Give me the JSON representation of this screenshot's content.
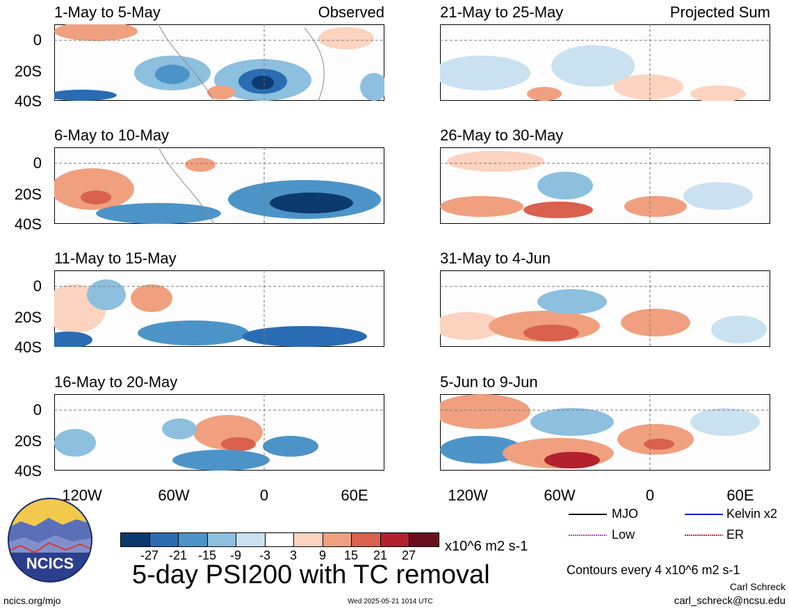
{
  "panels": [
    {
      "title": "1-May to 5-May",
      "tag": "Observed"
    },
    {
      "title": "6-May to 10-May",
      "tag": ""
    },
    {
      "title": "11-May to 15-May",
      "tag": ""
    },
    {
      "title": "16-May to 20-May",
      "tag": ""
    },
    {
      "title": "21-May to 25-May",
      "tag": "Projected Sum"
    },
    {
      "title": "26-May to 30-May",
      "tag": ""
    },
    {
      "title": "31-May to 4-Jun",
      "tag": ""
    },
    {
      "title": "5-Jun to 9-Jun",
      "tag": ""
    }
  ],
  "axes": {
    "lat_labels": [
      "0",
      "20S",
      "40S"
    ],
    "lon_labels": [
      "120W",
      "60W",
      "0",
      "60E"
    ]
  },
  "legend": {
    "mjo": "MJO",
    "kelvin": "Kelvin x2",
    "low": "Low",
    "er": "ER",
    "colors": {
      "mjo": "#000000",
      "kelvin": "#1a1acc",
      "low": "#b040d0",
      "er": "#cc2020"
    }
  },
  "colorbar": {
    "ticks": [
      "-27",
      "-21",
      "-15",
      "-9",
      "-3",
      "3",
      "9",
      "15",
      "21",
      "27"
    ],
    "units": "x10^6 m2 s-1",
    "colors": [
      "#0b3a6e",
      "#2a6cb3",
      "#4c94c8",
      "#8dbfdf",
      "#c9e1f0",
      "#ffffff",
      "#fbd3bf",
      "#f0a07e",
      "#d9614e",
      "#b3202e",
      "#6b0f1f"
    ]
  },
  "main_title": "5-day PSI200 with TC removal",
  "contour_note": "Contours every 4 x10^6 m2 s-1",
  "author": "Carl Schreck",
  "email": "carl_schreck@ncsu.edu",
  "site": "ncics.org/mjo",
  "timestamp": "Wed 2025-05-21 1014 UTC",
  "logo_text": "NCICS"
}
